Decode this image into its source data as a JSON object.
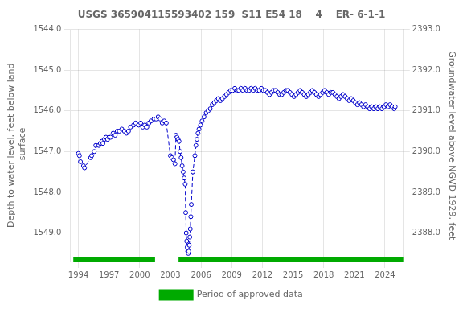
{
  "chart_data": {
    "type": "line",
    "title": "USGS 365904115593402 159  S11 E54 18    4    ER- 6-1-1",
    "ylabel": "Depth to water level, feet below land\n surface",
    "y2label": "Groundwater level above NGVD 1929, feet",
    "xlim": [
      1993.2,
      2025.8
    ],
    "xticks": [
      1994,
      1997,
      2000,
      2003,
      2006,
      2009,
      2012,
      2015,
      2018,
      2021,
      2024
    ],
    "ylim": [
      1549.7,
      1544.0
    ],
    "yticks": [
      {
        "value": 1544.0,
        "label": "1544.0"
      },
      {
        "value": 1545.0,
        "label": "1545.0"
      },
      {
        "value": 1546.0,
        "label": "1546.0"
      },
      {
        "value": 1547.0,
        "label": "1547.0"
      },
      {
        "value": 1548.0,
        "label": "1548.0"
      },
      {
        "value": 1549.0,
        "label": "1549.0"
      }
    ],
    "y2lim": [
      2387.3,
      2393.0
    ],
    "y2ticks": [
      {
        "value": 2388.0,
        "label": "2388.0"
      },
      {
        "value": 2389.0,
        "label": "2389.0"
      },
      {
        "value": 2390.0,
        "label": "2390.0"
      },
      {
        "value": 2391.0,
        "label": "2391.0"
      },
      {
        "value": 2392.0,
        "label": "2392.0"
      },
      {
        "value": 2393.0,
        "label": "2393.0"
      }
    ],
    "grid": true,
    "legend": "bottom",
    "x": [
      1994.0,
      1994.1,
      1994.2,
      1994.5,
      1994.6,
      1995.2,
      1995.3,
      1995.55,
      1995.7,
      1996.0,
      1996.15,
      1996.3,
      1996.4,
      1996.55,
      1996.7,
      1996.85,
      1997.0,
      1997.15,
      1997.4,
      1997.6,
      1997.8,
      1998.0,
      1998.25,
      1998.5,
      1998.7,
      1998.9,
      1999.1,
      1999.4,
      1999.6,
      1999.9,
      2000.1,
      2000.3,
      2000.5,
      2000.7,
      2000.9,
      2001.1,
      2001.4,
      2001.6,
      2001.8,
      2002.0,
      2002.2,
      2002.4,
      2002.6,
      2003.0,
      2003.15,
      2003.3,
      2003.45,
      2003.55,
      2003.65,
      2003.75,
      2003.85,
      2003.95,
      2004.05,
      2004.15,
      2004.25,
      2004.35,
      2004.45,
      2004.5,
      2004.55,
      2004.6,
      2004.65,
      2004.7,
      2004.75,
      2004.8,
      2004.85,
      2004.9,
      2004.95,
      2005.0,
      2005.05,
      2005.2,
      2005.4,
      2005.5,
      2005.6,
      2005.7,
      2005.8,
      2005.95,
      2006.1,
      2006.3,
      2006.5,
      2006.7,
      2006.9,
      2007.1,
      2007.3,
      2007.5,
      2007.7,
      2007.9,
      2008.1,
      2008.3,
      2008.5,
      2008.7,
      2008.9,
      2009.1,
      2009.3,
      2009.5,
      2009.7,
      2009.9,
      2010.1,
      2010.3,
      2010.5,
      2010.7,
      2010.9,
      2011.1,
      2011.3,
      2011.5,
      2011.7,
      2011.9,
      2012.1,
      2012.3,
      2012.5,
      2012.7,
      2012.9,
      2013.1,
      2013.3,
      2013.5,
      2013.7,
      2013.9,
      2014.1,
      2014.3,
      2014.5,
      2014.7,
      2014.9,
      2015.1,
      2015.3,
      2015.5,
      2015.7,
      2015.9,
      2016.1,
      2016.3,
      2016.5,
      2016.7,
      2016.9,
      2017.1,
      2017.3,
      2017.5,
      2017.7,
      2017.9,
      2018.1,
      2018.3,
      2018.5,
      2018.7,
      2018.9,
      2019.1,
      2019.3,
      2019.5,
      2019.7,
      2019.9,
      2020.1,
      2020.3,
      2020.5,
      2020.7,
      2020.9,
      2021.1,
      2021.3,
      2021.5,
      2021.7,
      2021.9,
      2022.1,
      2022.3,
      2022.5,
      2022.7,
      2022.9,
      2023.1,
      2023.3,
      2023.5,
      2023.7,
      2023.9,
      2024.1,
      2024.3,
      2024.5,
      2024.7,
      2024.9,
      2025.0
    ],
    "series": [
      {
        "color": "#0000cc",
        "marker": "circle",
        "line_style": "dashed",
        "values": [
          1547.05,
          1547.1,
          1547.25,
          1547.35,
          1547.4,
          1547.15,
          1547.1,
          1547.0,
          1546.85,
          1546.85,
          1546.8,
          1546.75,
          1546.8,
          1546.7,
          1546.65,
          1546.7,
          1546.65,
          1546.65,
          1546.55,
          1546.6,
          1546.5,
          1546.5,
          1546.45,
          1546.5,
          1546.55,
          1546.5,
          1546.4,
          1546.35,
          1546.3,
          1546.35,
          1546.3,
          1546.4,
          1546.35,
          1546.4,
          1546.3,
          1546.25,
          1546.2,
          1546.2,
          1546.15,
          1546.2,
          1546.3,
          1546.25,
          1546.3,
          1547.1,
          1547.15,
          1547.2,
          1547.3,
          1546.6,
          1546.65,
          1546.7,
          1546.75,
          1547.0,
          1547.15,
          1547.35,
          1547.5,
          1547.65,
          1547.8,
          1548.5,
          1549.0,
          1549.2,
          1549.35,
          1549.45,
          1549.5,
          1549.45,
          1549.3,
          1549.1,
          1548.9,
          1548.6,
          1548.3,
          1547.5,
          1547.1,
          1546.85,
          1546.7,
          1546.55,
          1546.45,
          1546.35,
          1546.25,
          1546.15,
          1546.05,
          1546.0,
          1545.95,
          1545.85,
          1545.8,
          1545.75,
          1545.7,
          1545.75,
          1545.7,
          1545.65,
          1545.6,
          1545.55,
          1545.5,
          1545.5,
          1545.45,
          1545.5,
          1545.5,
          1545.45,
          1545.5,
          1545.45,
          1545.5,
          1545.5,
          1545.45,
          1545.5,
          1545.45,
          1545.5,
          1545.5,
          1545.45,
          1545.5,
          1545.5,
          1545.55,
          1545.6,
          1545.55,
          1545.5,
          1545.5,
          1545.55,
          1545.6,
          1545.6,
          1545.55,
          1545.5,
          1545.5,
          1545.55,
          1545.6,
          1545.65,
          1545.6,
          1545.55,
          1545.5,
          1545.55,
          1545.6,
          1545.65,
          1545.6,
          1545.55,
          1545.5,
          1545.55,
          1545.6,
          1545.65,
          1545.6,
          1545.55,
          1545.5,
          1545.55,
          1545.6,
          1545.55,
          1545.55,
          1545.6,
          1545.65,
          1545.7,
          1545.65,
          1545.6,
          1545.65,
          1545.7,
          1545.75,
          1545.7,
          1545.75,
          1545.8,
          1545.85,
          1545.8,
          1545.85,
          1545.9,
          1545.85,
          1545.9,
          1545.95,
          1545.9,
          1545.95,
          1545.9,
          1545.95,
          1545.9,
          1545.95,
          1545.9,
          1545.85,
          1545.9,
          1545.85,
          1545.9,
          1545.95,
          1545.9
        ]
      },
      {
        "name": "Period of approved data",
        "color": "#00aa00",
        "periods": [
          [
            1993.5,
            2001.5
          ],
          [
            2003.8,
            2025.8
          ]
        ]
      }
    ]
  }
}
